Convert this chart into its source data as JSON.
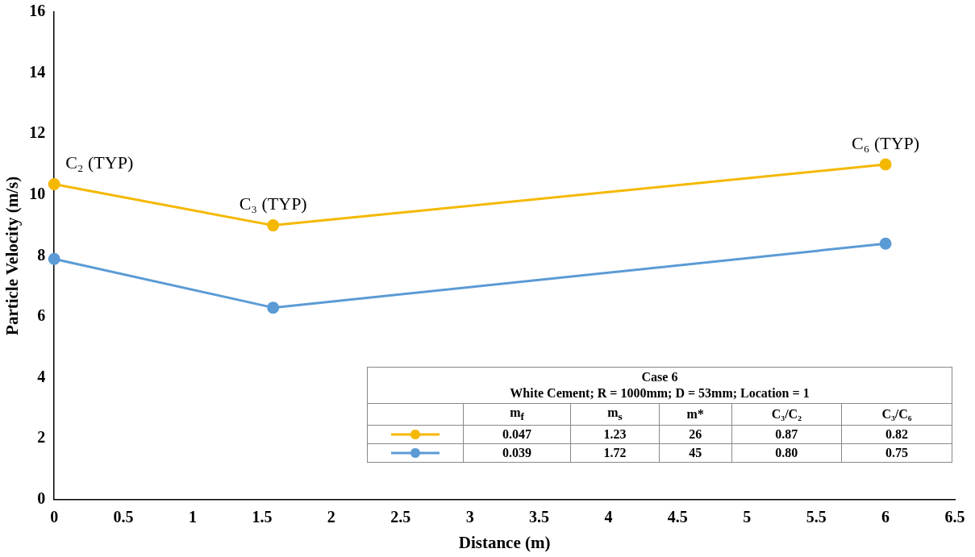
{
  "chart_data": {
    "type": "line",
    "xlabel": "Distance (m)",
    "ylabel": "Particle Velocity (m/s)",
    "series": [
      {
        "color": "#f5b800",
        "x": [
          0,
          1.58,
          6.0
        ],
        "values": [
          10.35,
          9.0,
          11.0
        ]
      },
      {
        "color": "#5b9bd5",
        "x": [
          0,
          1.58,
          6.0
        ],
        "values": [
          7.9,
          6.3,
          8.4
        ]
      }
    ],
    "xlim": [
      0,
      6.5
    ],
    "xticks": [
      0,
      0.5,
      1,
      1.5,
      2,
      2.5,
      3,
      3.5,
      4,
      4.5,
      5,
      5.5,
      6,
      6.5
    ],
    "ylim": [
      0,
      16
    ],
    "yticks": [
      0,
      2,
      4,
      6,
      8,
      10,
      12,
      14,
      16
    ],
    "grid": false,
    "marker": "circle",
    "line_style": "solid",
    "annotations": [
      {
        "text": "C₂ (TYP)",
        "x": 0,
        "y": 10.35
      },
      {
        "text": "C₃ (TYP)",
        "x": 1.58,
        "y": 9.0
      },
      {
        "text": "C₆ (TYP)",
        "x": 6.0,
        "y": 11.0
      },
      "Case 6",
      "White Cement; R = 1000mm; D = 53mm; Location = 1",
      "m$_{f}$",
      "m$_{s}$",
      "m*",
      "C₃/C₂",
      "C₃/C₆",
      "0.047",
      "1.23",
      "26",
      "0.87",
      "0.82",
      "0.039",
      "1.72",
      "45",
      "0.80",
      "0.75"
    ]
  }
}
